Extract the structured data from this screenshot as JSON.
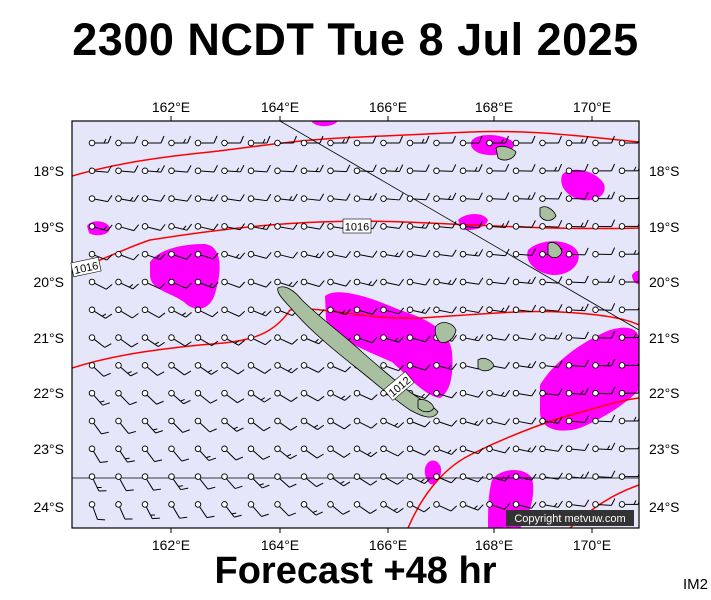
{
  "header": {
    "title": "2300 NCDT Tue 8 Jul 2025"
  },
  "footer": {
    "forecast_label": "Forecast +48 hr",
    "chart_code": "IM2"
  },
  "map": {
    "copyright": "Copyright metvuw.com",
    "lon_ticks": [
      "162°E",
      "164°E",
      "166°E",
      "168°E",
      "170°E"
    ],
    "lat_ticks": [
      "18°S",
      "19°S",
      "20°S",
      "21°S",
      "22°S",
      "23°S",
      "24°S"
    ],
    "isobar_labels": [
      "1016",
      "1016",
      "1012"
    ],
    "colors": {
      "background": "#e6e6fa",
      "rain": "#ff00ff",
      "isobar": "#ff0000",
      "land": "#a8bfa0",
      "barb": "#000000"
    },
    "layers": [
      "rain",
      "isobars",
      "wind-barbs",
      "land",
      "tropic-line",
      "track-line"
    ]
  }
}
